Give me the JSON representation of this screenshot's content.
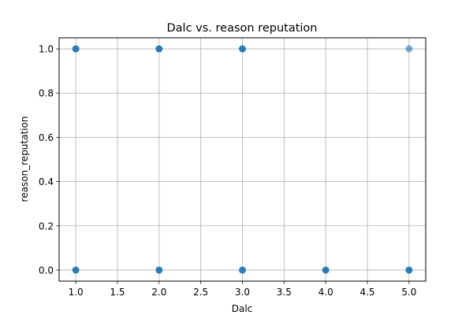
{
  "chart_data": {
    "type": "scatter",
    "title": "Dalc vs. reason reputation",
    "xlabel": "Dalc",
    "ylabel": "reason_reputation",
    "xlim": [
      0.8,
      5.2
    ],
    "ylim": [
      -0.05,
      1.05
    ],
    "x_ticks": [
      1.0,
      1.5,
      2.0,
      2.5,
      3.0,
      3.5,
      4.0,
      4.5,
      5.0
    ],
    "x_tick_labels": [
      "1.0",
      "1.5",
      "2.0",
      "2.5",
      "3.0",
      "3.5",
      "4.0",
      "4.5",
      "5.0"
    ],
    "y_ticks": [
      0.0,
      0.2,
      0.4,
      0.6,
      0.8,
      1.0
    ],
    "y_tick_labels": [
      "0.0",
      "0.2",
      "0.4",
      "0.6",
      "0.8",
      "1.0"
    ],
    "grid": true,
    "point_color": "#1f77b4",
    "series": [
      {
        "x": [
          1,
          2,
          3,
          5,
          1,
          2,
          3,
          4,
          5
        ],
        "y": [
          1,
          1,
          1,
          1,
          0,
          0,
          0,
          0,
          0
        ],
        "alpha": [
          0.95,
          0.95,
          0.95,
          0.6,
          0.95,
          0.95,
          0.95,
          0.95,
          0.95
        ]
      }
    ]
  }
}
